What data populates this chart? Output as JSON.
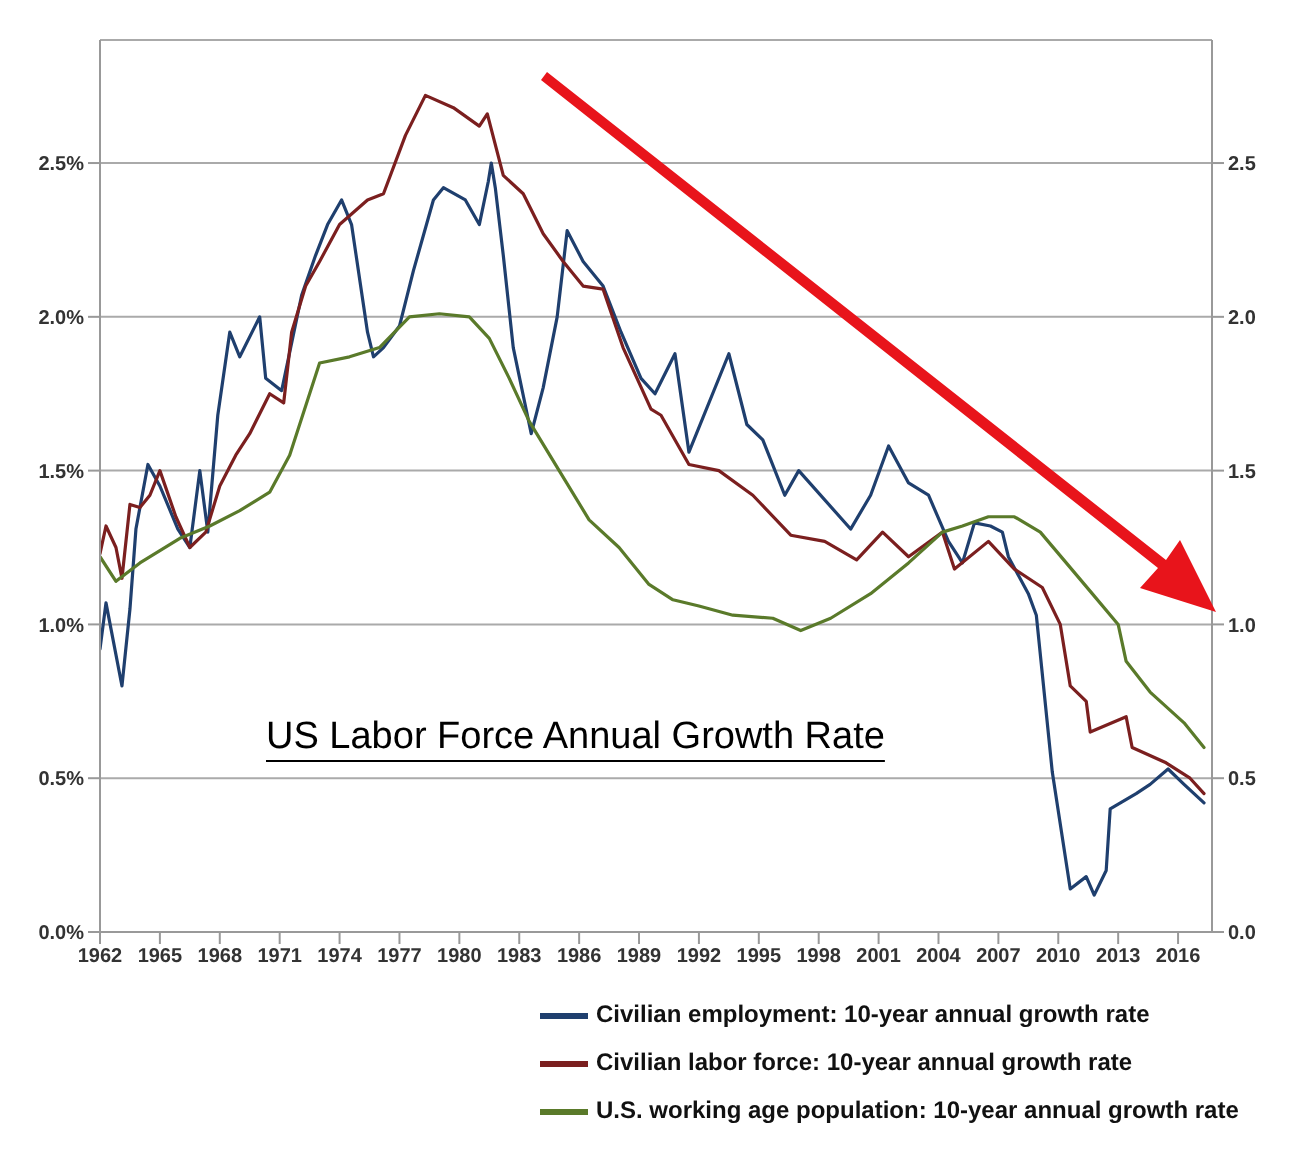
{
  "chart_data": {
    "type": "line",
    "title": "US Labor Force Annual Growth Rate",
    "xlim": [
      1962,
      2017.7
    ],
    "xticks": [
      1962,
      1965,
      1968,
      1971,
      1974,
      1977,
      1980,
      1983,
      1986,
      1989,
      1992,
      1995,
      1998,
      2001,
      2004,
      2007,
      2010,
      2013,
      2016
    ],
    "ylim": [
      0,
      2.9
    ],
    "yticks": [
      {
        "value": 0,
        "label": "0.0%"
      },
      {
        "value": 0.5,
        "label": "0.5%"
      },
      {
        "value": 1,
        "label": "1.0%"
      },
      {
        "value": 1.5,
        "label": "1.5%"
      },
      {
        "value": 2,
        "label": "2.0%"
      },
      {
        "value": 2.5,
        "label": "2.5%"
      }
    ],
    "y2lim": [
      0,
      2.9
    ],
    "y2ticks": [
      {
        "value": 0,
        "label": "0.0"
      },
      {
        "value": 0.5,
        "label": "0.5"
      },
      {
        "value": 1,
        "label": "1.0"
      },
      {
        "value": 1.5,
        "label": "1.5"
      },
      {
        "value": 2,
        "label": "2.0"
      },
      {
        "value": 2.5,
        "label": "2.5"
      }
    ],
    "grid": "y",
    "legend": "bottom right",
    "marker": "none",
    "line_style": "solid",
    "series": [
      {
        "name": "Civilian employment: 10-year annual growth rate",
        "color": "#1f3f6e",
        "x": [
          1962,
          1962.3,
          1963.1,
          1963.5,
          1963.8,
          1964.4,
          1965,
          1965.9,
          1966.5,
          1967,
          1967.4,
          1967.9,
          1968.5,
          1969,
          1970,
          1970.3,
          1971.1,
          1972.1,
          1972.8,
          1973.4,
          1974.1,
          1974.6,
          1975.4,
          1975.7,
          1976.2,
          1977,
          1977.7,
          1978.7,
          1979.2,
          1980.3,
          1981,
          1981.45,
          1981.6,
          1981.8,
          1982.2,
          1982.7,
          1983.6,
          1984.2,
          1984.9,
          1985.4,
          1986.2,
          1987.2,
          1988.1,
          1989.1,
          1989.8,
          1990.8,
          1991.5,
          1993.5,
          1994.4,
          1995.2,
          1996.3,
          1997,
          1999.6,
          2000.6,
          2001.5,
          2002.5,
          2003.5,
          2004.5,
          2005.2,
          2005.8,
          2006.6,
          2007.2,
          2007.5,
          2008.5,
          2008.9,
          2009.7,
          2010.6,
          2011.4,
          2011.8,
          2012.4,
          2012.6,
          2013.9,
          2014.6,
          2015.5,
          2016.3,
          2017.3
        ],
        "values": [
          0.92,
          1.07,
          0.8,
          1.05,
          1.31,
          1.52,
          1.45,
          1.31,
          1.25,
          1.5,
          1.3,
          1.68,
          1.95,
          1.87,
          2.0,
          1.8,
          1.76,
          2.07,
          2.2,
          2.3,
          2.38,
          2.3,
          1.95,
          1.87,
          1.9,
          1.97,
          2.15,
          2.38,
          2.42,
          2.38,
          2.3,
          2.44,
          2.5,
          2.42,
          2.2,
          1.9,
          1.62,
          1.77,
          2.0,
          2.28,
          2.18,
          2.1,
          1.95,
          1.8,
          1.75,
          1.88,
          1.56,
          1.88,
          1.65,
          1.6,
          1.42,
          1.5,
          1.31,
          1.42,
          1.58,
          1.46,
          1.42,
          1.27,
          1.2,
          1.33,
          1.32,
          1.3,
          1.22,
          1.1,
          1.03,
          0.52,
          0.14,
          0.18,
          0.12,
          0.2,
          0.4,
          0.45,
          0.48,
          0.53,
          0.48,
          0.42
        ]
      },
      {
        "name": "Civilian labor force: 10-year annual growth rate",
        "color": "#7b1f1f",
        "x": [
          1962,
          1962.3,
          1962.8,
          1963.1,
          1963.5,
          1964,
          1964.5,
          1965,
          1965.8,
          1966.5,
          1967.3,
          1968,
          1968.8,
          1969.5,
          1970.5,
          1971.2,
          1971.6,
          1972.3,
          1973,
          1974,
          1975.4,
          1976.2,
          1977.3,
          1978.3,
          1979.7,
          1981,
          1981.4,
          1982.2,
          1983.2,
          1984.2,
          1985.2,
          1986.2,
          1987.2,
          1988.2,
          1989.6,
          1990.1,
          1991.5,
          1993,
          1994.7,
          1996.6,
          1998.3,
          1999.9,
          2001.2,
          2002.5,
          2004.2,
          2004.8,
          2006.5,
          2007.8,
          2009.2,
          2010.1,
          2010.6,
          2011.4,
          2011.6,
          2013.4,
          2013.7,
          2015.4,
          2016.6,
          2017.3
        ],
        "values": [
          1.23,
          1.32,
          1.25,
          1.15,
          1.39,
          1.38,
          1.42,
          1.5,
          1.35,
          1.25,
          1.3,
          1.45,
          1.55,
          1.62,
          1.75,
          1.72,
          1.95,
          2.1,
          2.18,
          2.3,
          2.38,
          2.4,
          2.59,
          2.72,
          2.68,
          2.62,
          2.66,
          2.46,
          2.4,
          2.27,
          2.18,
          2.1,
          2.09,
          1.9,
          1.7,
          1.68,
          1.52,
          1.5,
          1.42,
          1.29,
          1.27,
          1.21,
          1.3,
          1.22,
          1.3,
          1.18,
          1.27,
          1.18,
          1.12,
          1.0,
          0.8,
          0.75,
          0.65,
          0.7,
          0.6,
          0.55,
          0.5,
          0.45
        ]
      },
      {
        "name": "U.S. working age population: 10-year annual growth rate",
        "color": "#5a7a2a",
        "x": [
          1962,
          1962.8,
          1964,
          1966,
          1967.5,
          1969,
          1970.5,
          1971.5,
          1972.5,
          1973,
          1974.5,
          1976,
          1977.5,
          1979,
          1980.5,
          1981.5,
          1982.5,
          1983.5,
          1985,
          1986.5,
          1988,
          1989.5,
          1990.7,
          1992,
          1993.7,
          1995.7,
          1997.1,
          1998.6,
          2000.6,
          2002.5,
          2004.2,
          2005.2,
          2006.5,
          2007.8,
          2009.1,
          2010.4,
          2011.7,
          2013,
          2013.4,
          2014.6,
          2016.3,
          2017.3
        ],
        "values": [
          1.22,
          1.14,
          1.2,
          1.28,
          1.32,
          1.37,
          1.43,
          1.55,
          1.75,
          1.85,
          1.87,
          1.9,
          2.0,
          2.01,
          2.0,
          1.93,
          1.8,
          1.66,
          1.5,
          1.34,
          1.25,
          1.13,
          1.08,
          1.06,
          1.03,
          1.02,
          0.98,
          1.02,
          1.1,
          1.2,
          1.3,
          1.32,
          1.35,
          1.35,
          1.3,
          1.2,
          1.1,
          1.0,
          0.88,
          0.78,
          0.68,
          0.6
        ]
      }
    ]
  }
}
